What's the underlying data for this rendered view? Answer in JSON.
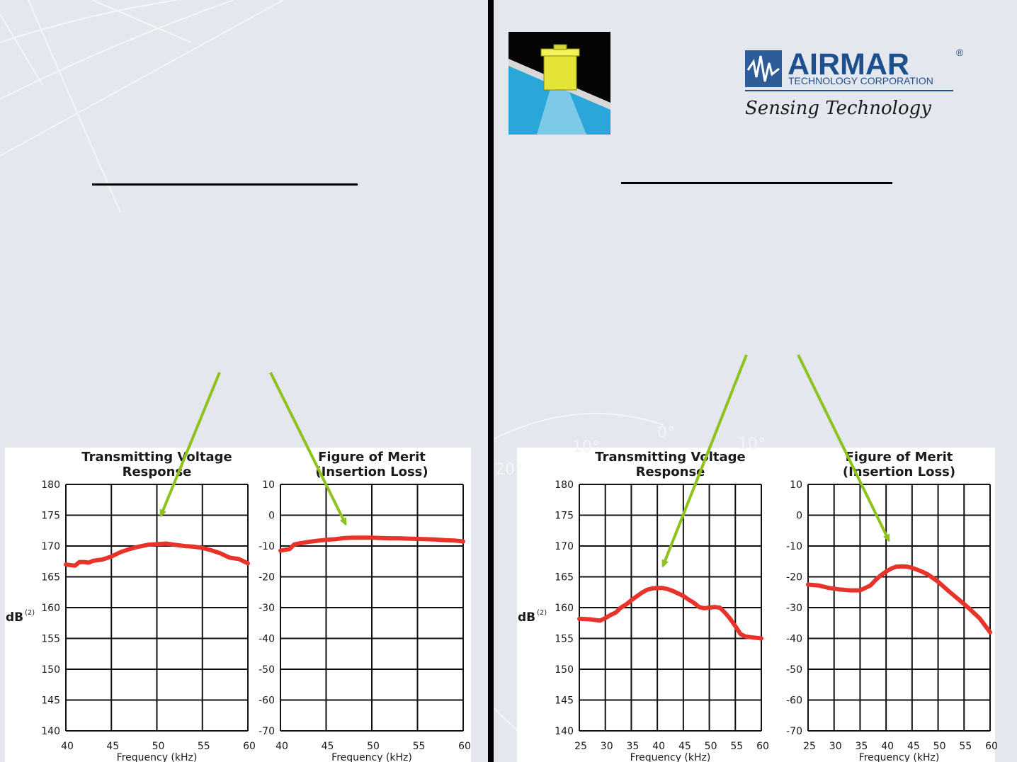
{
  "colors": {
    "series": "#e8332a",
    "arrow": "#8dc21f",
    "divider": "#000000",
    "background": "#e4e8ee"
  },
  "icons": {
    "product": "transducer-beam-icon",
    "logo": "airmar-logo"
  },
  "logo": {
    "name": "AIRMAR",
    "registered": "®",
    "subtitle": "TECHNOLOGY CORPORATION",
    "tagline": "Sensing Technology"
  },
  "background_labels": [
    "0°",
    "10°",
    "10°",
    "20°"
  ],
  "chart_data": [
    {
      "type": "line",
      "panel": "left",
      "title": [
        "Transmitting Voltage",
        "Response"
      ],
      "ylabel": "dB",
      "ylabel_sup": "(2)",
      "xlabel": "Frequency (kHz)",
      "xticks": [
        "40",
        "45",
        "50",
        "55",
        "60"
      ],
      "yticks": [
        "180",
        "175",
        "170",
        "165",
        "160",
        "155",
        "150",
        "145",
        "140"
      ],
      "xlim": [
        40,
        60
      ],
      "ylim": [
        140,
        180
      ],
      "grid": true,
      "series": [
        {
          "x": [
            40,
            41,
            41.5,
            42,
            42.5,
            43,
            44,
            45,
            46,
            47,
            48,
            49,
            50,
            51,
            52,
            53,
            54,
            55,
            56,
            57,
            58,
            59,
            60
          ],
          "y": [
            167.0,
            166.8,
            167.4,
            167.4,
            167.3,
            167.6,
            167.8,
            168.3,
            169.0,
            169.5,
            169.9,
            170.2,
            170.3,
            170.4,
            170.2,
            170.0,
            169.9,
            169.7,
            169.3,
            168.8,
            168.1,
            167.9,
            167.2
          ]
        }
      ]
    },
    {
      "type": "line",
      "panel": "left",
      "title": [
        "Figure of Merit",
        "(Insertion Loss)"
      ],
      "ylabel": "",
      "xlabel": "Frequency (kHz)",
      "xticks": [
        "40",
        "45",
        "50",
        "55",
        "60"
      ],
      "yticks": [
        "10",
        "0",
        "-10",
        "-20",
        "-30",
        "-40",
        "-50",
        "-60",
        "-70"
      ],
      "xlim": [
        40,
        60
      ],
      "ylim": [
        -70,
        10
      ],
      "grid": true,
      "series": [
        {
          "x": [
            40,
            41,
            41.5,
            42,
            43,
            44,
            45,
            46,
            47,
            48,
            49,
            50,
            51,
            52,
            53,
            54,
            55,
            56,
            57,
            58,
            59,
            60
          ],
          "y": [
            -11.5,
            -11.0,
            -9.5,
            -9.2,
            -8.7,
            -8.3,
            -8.0,
            -7.8,
            -7.4,
            -7.3,
            -7.3,
            -7.3,
            -7.4,
            -7.5,
            -7.5,
            -7.6,
            -7.7,
            -7.8,
            -7.9,
            -8.1,
            -8.2,
            -8.5
          ]
        }
      ]
    },
    {
      "type": "line",
      "panel": "right",
      "title": [
        "Transmitting Voltage",
        "Response"
      ],
      "ylabel": "dB",
      "ylabel_sup": "(2)",
      "xlabel": "Frequency (kHz)",
      "xticks": [
        "25",
        "30",
        "35",
        "40",
        "45",
        "50",
        "55",
        "60"
      ],
      "yticks": [
        "180",
        "175",
        "170",
        "165",
        "160",
        "155",
        "150",
        "145",
        "140"
      ],
      "xlim": [
        25,
        60
      ],
      "ylim": [
        140,
        180
      ],
      "grid": true,
      "series": [
        {
          "x": [
            25,
            27,
            29,
            30,
            31,
            32,
            33,
            34,
            35,
            36,
            37,
            38,
            39,
            40,
            41,
            42,
            43,
            44,
            45,
            46,
            47,
            48,
            49,
            50,
            51,
            52,
            53,
            54,
            55,
            56,
            57,
            58,
            59,
            60
          ],
          "y": [
            158.2,
            158.1,
            157.9,
            158.3,
            158.8,
            159.2,
            160.0,
            160.5,
            161.2,
            161.8,
            162.4,
            162.9,
            163.1,
            163.2,
            163.2,
            163.0,
            162.7,
            162.3,
            161.9,
            161.3,
            160.8,
            160.1,
            159.9,
            160.0,
            160.1,
            160.0,
            159.2,
            158.2,
            157.0,
            155.7,
            155.3,
            155.2,
            155.1,
            155.0
          ]
        }
      ]
    },
    {
      "type": "line",
      "panel": "right",
      "title": [
        "Figure of Merit",
        "(Insertion Loss)"
      ],
      "ylabel": "",
      "xlabel": "Frequency (kHz)",
      "xticks": [
        "25",
        "30",
        "35",
        "40",
        "45",
        "50",
        "55",
        "60"
      ],
      "yticks": [
        "10",
        "0",
        "-10",
        "-20",
        "-30",
        "-40",
        "-50",
        "-60",
        "-70"
      ],
      "xlim": [
        25,
        60
      ],
      "ylim": [
        -70,
        10
      ],
      "grid": true,
      "series": [
        {
          "x": [
            25,
            27,
            29,
            31,
            33,
            35,
            36,
            37,
            38,
            39,
            40,
            41,
            42,
            43,
            44,
            45,
            46,
            47,
            48,
            50,
            52,
            54,
            56,
            58,
            60
          ],
          "y": [
            -22.5,
            -22.8,
            -23.6,
            -24.1,
            -24.4,
            -24.4,
            -23.6,
            -22.8,
            -21.0,
            -19.5,
            -18.3,
            -17.3,
            -16.7,
            -16.6,
            -16.7,
            -17.1,
            -17.7,
            -18.4,
            -19.2,
            -21.6,
            -24.6,
            -27.4,
            -30.3,
            -33.5,
            -38.0
          ]
        }
      ]
    }
  ]
}
